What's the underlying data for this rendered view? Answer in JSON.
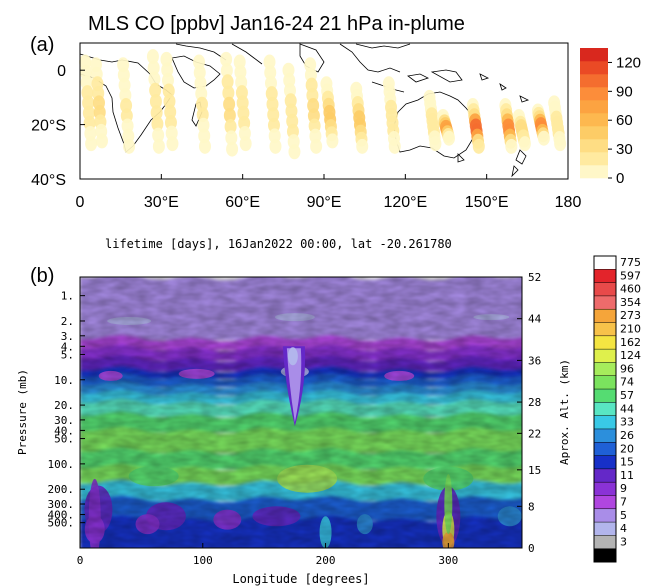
{
  "chart_data": [
    {
      "panel": "(a)",
      "type": "scatter",
      "title": "MLS CO [ppbv] Jan16-24 21 hPa in-plume",
      "xticks": [
        "0",
        "30°E",
        "60°E",
        "90°E",
        "120°E",
        "150°E",
        "180"
      ],
      "xtick_values": [
        0,
        30,
        60,
        90,
        120,
        150,
        180
      ],
      "yticks": [
        "0",
        "20°S",
        "40°S"
      ],
      "ytick_values": [
        0,
        -20,
        -40
      ],
      "xlim": [
        0,
        180
      ],
      "ylim": [
        -40,
        10
      ],
      "colorbar": {
        "labels": [
          "0",
          "30",
          "60",
          "90",
          "120"
        ],
        "label_values": [
          0,
          30,
          60,
          90,
          120
        ],
        "colors": [
          "#fff7c8",
          "#ffeaa0",
          "#fedd84",
          "#fdcc66",
          "#fdb84f",
          "#fca341",
          "#fc8d3a",
          "#f46d2f",
          "#ea4a25",
          "#d9281e"
        ],
        "range": [
          0,
          135
        ]
      },
      "tracks": [
        {
          "lon": 3,
          "lat_top": 3,
          "lat_bot": -27,
          "peak": 20
        },
        {
          "lon": 7,
          "lat_top": 2,
          "lat_bot": -26,
          "peak": 30
        },
        {
          "lon": 17,
          "lat_top": 2,
          "lat_bot": -28,
          "peak": 15
        },
        {
          "lon": 28,
          "lat_top": 5,
          "lat_bot": -28,
          "peak": 25
        },
        {
          "lon": 33,
          "lat_top": 4,
          "lat_bot": -27,
          "peak": 20
        },
        {
          "lon": 45,
          "lat_top": 3,
          "lat_bot": -28,
          "peak": 15
        },
        {
          "lon": 55,
          "lat_top": 4,
          "lat_bot": -29,
          "peak": 30
        },
        {
          "lon": 60,
          "lat_top": 3,
          "lat_bot": -27,
          "peak": 25
        },
        {
          "lon": 71,
          "lat_top": 3,
          "lat_bot": -28,
          "peak": 20
        },
        {
          "lon": 78,
          "lat_top": 0,
          "lat_bot": -30,
          "peak": 25
        },
        {
          "lon": 86,
          "lat_top": 2,
          "lat_bot": -28,
          "peak": 30
        },
        {
          "lon": 92,
          "lat_top": -5,
          "lat_bot": -26,
          "peak": 45
        },
        {
          "lon": 103,
          "lat_top": -7,
          "lat_bot": -28,
          "peak": 55
        },
        {
          "lon": 115,
          "lat_top": -5,
          "lat_bot": -28,
          "peak": 25
        },
        {
          "lon": 130,
          "lat_top": -10,
          "lat_bot": -27,
          "peak": 25
        },
        {
          "lon": 135,
          "lat_top": -17,
          "lat_bot": -25,
          "peak": 75
        },
        {
          "lon": 146,
          "lat_top": -13,
          "lat_bot": -28,
          "peak": 110
        },
        {
          "lon": 158,
          "lat_top": -13,
          "lat_bot": -28,
          "peak": 95
        },
        {
          "lon": 163,
          "lat_top": -17,
          "lat_bot": -27,
          "peak": 40
        },
        {
          "lon": 170,
          "lat_top": -15,
          "lat_bot": -25,
          "peak": 90
        },
        {
          "lon": 176,
          "lat_top": -12,
          "lat_bot": -27,
          "peak": 25
        }
      ]
    },
    {
      "panel": "(b)",
      "type": "heatmap",
      "title": "lifetime [days], 16Jan2022 00:00, lat -20.261780",
      "xlabel": "Longitude [degrees]",
      "ylabel": "Pressure (mb)",
      "y2label": "Aprox. Alt. (km)",
      "xticks": [
        "0",
        "100",
        "200",
        "300"
      ],
      "xtick_values": [
        0,
        100,
        200,
        300
      ],
      "xlim": [
        0,
        360
      ],
      "yticks": [
        "1.",
        "2.",
        "3.",
        "4.",
        "5.",
        "10.",
        "20.",
        "30.",
        "40.",
        "50.",
        "100.",
        "200.",
        "300.",
        "400.",
        "500."
      ],
      "ytick_values": [
        1,
        2,
        3,
        4,
        5,
        10,
        20,
        30,
        40,
        50,
        100,
        200,
        300,
        400,
        500
      ],
      "ylim_pressure_mb": [
        0.6,
        1000
      ],
      "y2ticks": [
        "0",
        "8",
        "15",
        "22",
        "28",
        "36",
        "44",
        "52"
      ],
      "y2tick_values": [
        0,
        8,
        15,
        22,
        28,
        36,
        44,
        52
      ],
      "colorbar": {
        "labels": [
          "775",
          "597",
          "460",
          "354",
          "273",
          "210",
          "162",
          "124",
          "96",
          "74",
          "57",
          "44",
          "33",
          "26",
          "20",
          "15",
          "11",
          "9",
          "7",
          "5",
          "4",
          "3"
        ],
        "colors": [
          "#ffffff",
          "#e3242b",
          "#e84a4a",
          "#ee6b6b",
          "#f5a53a",
          "#f7c24a",
          "#f4e542",
          "#dff04c",
          "#a6ec5c",
          "#7be35e",
          "#55dc72",
          "#59e6c3",
          "#39c9e6",
          "#2c8fdc",
          "#1f60d6",
          "#1730c8",
          "#6428c8",
          "#8a32d6",
          "#b046e0",
          "#a98de8",
          "#b2b5ec",
          "#b3b3b3",
          "#000000"
        ]
      },
      "bands": [
        {
          "p_top": 0.6,
          "p_bot": 3.2,
          "level": "5"
        },
        {
          "p_top": 3.2,
          "p_bot": 4.2,
          "level": "7"
        },
        {
          "p_top": 4.2,
          "p_bot": 5.6,
          "level": "9"
        },
        {
          "p_top": 5.6,
          "p_bot": 7.5,
          "level": "11"
        },
        {
          "p_top": 7.5,
          "p_bot": 9.2,
          "level": "15"
        },
        {
          "p_top": 9.2,
          "p_bot": 11.5,
          "level": "20"
        },
        {
          "p_top": 11.5,
          "p_bot": 14.5,
          "level": "26"
        },
        {
          "p_top": 14.5,
          "p_bot": 18.5,
          "level": "33"
        },
        {
          "p_top": 18.5,
          "p_bot": 26,
          "level": "44"
        },
        {
          "p_top": 26,
          "p_bot": 40,
          "level": "57"
        },
        {
          "p_top": 40,
          "p_bot": 70,
          "level": "74"
        },
        {
          "p_top": 70,
          "p_bot": 110,
          "level": "57"
        },
        {
          "p_top": 110,
          "p_bot": 170,
          "level": "74"
        },
        {
          "p_top": 170,
          "p_bot": 260,
          "level": "33"
        },
        {
          "p_top": 260,
          "p_bot": 450,
          "level": "20"
        },
        {
          "p_top": 450,
          "p_bot": 1000,
          "level": "15"
        }
      ],
      "plume": {
        "lon": 175,
        "p_top": 4,
        "p_bot": 32,
        "level": "4"
      }
    }
  ]
}
